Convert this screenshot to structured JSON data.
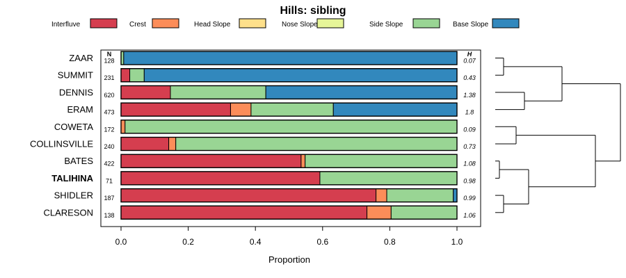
{
  "chart_data": {
    "type": "bar",
    "stacked": true,
    "orientation": "horizontal",
    "title": "Hills: sibling",
    "xlabel": "Proportion",
    "xlim": [
      0,
      1
    ],
    "xticks": [
      0.0,
      0.2,
      0.4,
      0.6,
      0.8,
      1.0
    ],
    "xtick_labels": [
      "0.0",
      "0.2",
      "0.4",
      "0.6",
      "0.8",
      "1.0"
    ],
    "n_header": "N",
    "h_header": "H",
    "legend_position": "top",
    "series": [
      {
        "name": "Interfluve",
        "color": "#d53e4f"
      },
      {
        "name": "Crest",
        "color": "#fc8d59"
      },
      {
        "name": "Head Slope",
        "color": "#fee08b"
      },
      {
        "name": "Nose Slope",
        "color": "#e6f598"
      },
      {
        "name": "Side Slope",
        "color": "#99d594"
      },
      {
        "name": "Base Slope",
        "color": "#3288bd"
      }
    ],
    "categories": [
      {
        "name": "ZAAR",
        "bold": false,
        "n": "128",
        "h": "0.07",
        "values": [
          0.0,
          0.0,
          0.0,
          0.0,
          0.008,
          0.992
        ]
      },
      {
        "name": "SUMMIT",
        "bold": false,
        "n": "231",
        "h": "0.43",
        "values": [
          0.026,
          0.0,
          0.0,
          0.0,
          0.043,
          0.931
        ]
      },
      {
        "name": "DENNIS",
        "bold": false,
        "n": "620",
        "h": "1.38",
        "values": [
          0.147,
          0.0,
          0.0,
          0.0,
          0.284,
          0.569
        ]
      },
      {
        "name": "ERAM",
        "bold": false,
        "n": "473",
        "h": "1.8",
        "values": [
          0.326,
          0.061,
          0.0,
          0.0,
          0.245,
          0.368
        ]
      },
      {
        "name": "COWETA",
        "bold": false,
        "n": "172",
        "h": "0.09",
        "values": [
          0.0,
          0.012,
          0.0,
          0.0,
          0.988,
          0.0
        ]
      },
      {
        "name": "COLLINSVILLE",
        "bold": false,
        "n": "240",
        "h": "0.73",
        "values": [
          0.142,
          0.021,
          0.0,
          0.0,
          0.837,
          0.0
        ]
      },
      {
        "name": "BATES",
        "bold": false,
        "n": "422",
        "h": "1.08",
        "values": [
          0.536,
          0.012,
          0.0,
          0.0,
          0.452,
          0.0
        ]
      },
      {
        "name": "TALIHINA",
        "bold": true,
        "n": "71",
        "h": "0.98",
        "values": [
          0.592,
          0.0,
          0.0,
          0.0,
          0.408,
          0.0
        ]
      },
      {
        "name": "SHIDLER",
        "bold": false,
        "n": "187",
        "h": "0.99",
        "values": [
          0.759,
          0.032,
          0.0,
          0.0,
          0.198,
          0.011
        ]
      },
      {
        "name": "CLARESON",
        "bold": false,
        "n": "138",
        "h": "1.06",
        "values": [
          0.732,
          0.072,
          0.0,
          0.0,
          0.196,
          0.0
        ]
      }
    ],
    "dendrogram": {
      "description": "hierarchical clustering of sites",
      "merges": [
        {
          "leaves": [
            "ZAAR",
            "SUMMIT"
          ],
          "height": 0.1
        },
        {
          "leaves": [
            "DENNIS",
            "ERAM"
          ],
          "height": 0.35
        },
        {
          "leaves": [
            "ZAAR",
            "SUMMIT",
            "DENNIS",
            "ERAM"
          ],
          "height": 0.8
        },
        {
          "leaves": [
            "COWETA",
            "COLLINSVILLE"
          ],
          "height": 0.25
        },
        {
          "leaves": [
            "BATES",
            "TALIHINA"
          ],
          "height": 0.05
        },
        {
          "leaves": [
            "SHIDLER",
            "CLARESON"
          ],
          "height": 0.1
        },
        {
          "leaves": [
            "BATES",
            "TALIHINA",
            "SHIDLER",
            "CLARESON"
          ],
          "height": 0.4
        },
        {
          "leaves": [
            "COWETA",
            "COLLINSVILLE",
            "BATES",
            "TALIHINA",
            "SHIDLER",
            "CLARESON"
          ],
          "height": 1.2
        },
        {
          "leaves": [
            "ZAAR",
            "SUMMIT",
            "DENNIS",
            "ERAM",
            "COWETA",
            "COLLINSVILLE",
            "BATES",
            "TALIHINA",
            "SHIDLER",
            "CLARESON"
          ],
          "height": 1.5
        }
      ]
    }
  }
}
